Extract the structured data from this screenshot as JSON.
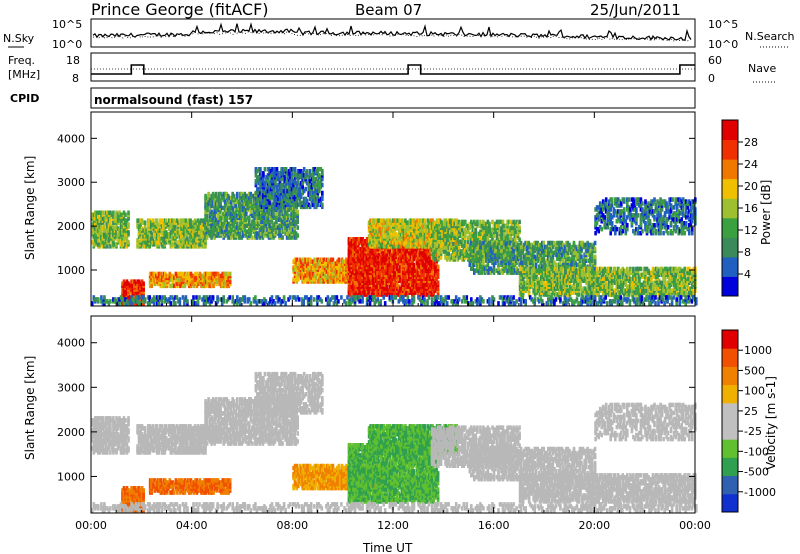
{
  "header": {
    "station": "Prince George (fitACF)",
    "beam": "Beam 07",
    "date": "25/Jun/2011"
  },
  "noise_panel": {
    "left_label": "N.Sky",
    "right_label": "N.Search",
    "left_ticks": [
      "10^5",
      "10^0"
    ],
    "right_ticks": [
      "10^5",
      "10^0"
    ]
  },
  "freq_panel": {
    "left_label_1": "Freq.",
    "left_label_2": "[MHz]",
    "right_label": "Nave",
    "left_ticks": [
      "18",
      "8"
    ],
    "right_ticks": [
      "60",
      "0"
    ]
  },
  "cpid_panel": {
    "label": "CPID",
    "text": "normalsound (fast) 157"
  },
  "colors": {
    "power_scale": [
      "#0000dd",
      "#2060c0",
      "#3a8a5a",
      "#3aa040",
      "#9ec030",
      "#f0c000",
      "#f07800",
      "#f03000",
      "#e00000"
    ],
    "velocity_scale": [
      "#e00000",
      "#f05000",
      "#f08000",
      "#f0b000",
      "#c0c0c0",
      "#c0c0c0",
      "#60c030",
      "#30a050",
      "#3060b0",
      "#1030d0"
    ],
    "ground_scatter": "#b8b8b8"
  },
  "chart_data": [
    {
      "type": "heatmap",
      "title": "Power",
      "ylabel": "Slant Range [km]",
      "colorbar_label": "Power [dB]",
      "colorbar_ticks": [
        "4",
        "8",
        "12",
        "16",
        "20",
        "24",
        "28"
      ],
      "ylim": [
        180,
        4600
      ],
      "xlim": [
        0,
        24
      ],
      "y_ticks": [
        "1000",
        "2000",
        "3000",
        "4000"
      ],
      "x_ticks": [
        "00:00",
        "04:00",
        "08:00",
        "12:00",
        "16:00",
        "20:00",
        "00:00"
      ]
    },
    {
      "type": "heatmap",
      "title": "Velocity",
      "ylabel": "Slant Range [km]",
      "xlabel": "Time UT",
      "colorbar_label": "Velocity [m s-1]",
      "colorbar_ticks": [
        "1000",
        "500",
        "100",
        "25",
        "-25",
        "-100",
        "-500",
        "-1000"
      ],
      "ylim": [
        180,
        4600
      ],
      "xlim": [
        0,
        24
      ],
      "y_ticks": [
        "1000",
        "2000",
        "3000",
        "4000"
      ],
      "x_ticks": [
        "00:00",
        "04:00",
        "08:00",
        "12:00",
        "16:00",
        "20:00",
        "00:00"
      ]
    }
  ]
}
